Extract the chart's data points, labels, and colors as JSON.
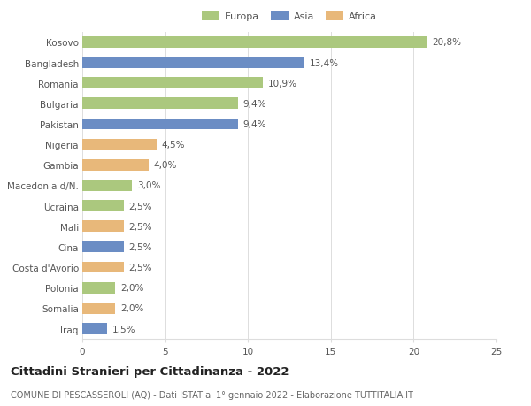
{
  "categories": [
    "Kosovo",
    "Bangladesh",
    "Romania",
    "Bulgaria",
    "Pakistan",
    "Nigeria",
    "Gambia",
    "Macedonia d/N.",
    "Ucraina",
    "Mali",
    "Cina",
    "Costa d'Avorio",
    "Polonia",
    "Somalia",
    "Iraq"
  ],
  "values": [
    20.8,
    13.4,
    10.9,
    9.4,
    9.4,
    4.5,
    4.0,
    3.0,
    2.5,
    2.5,
    2.5,
    2.5,
    2.0,
    2.0,
    1.5
  ],
  "labels": [
    "20,8%",
    "13,4%",
    "10,9%",
    "9,4%",
    "9,4%",
    "4,5%",
    "4,0%",
    "3,0%",
    "2,5%",
    "2,5%",
    "2,5%",
    "2,5%",
    "2,0%",
    "2,0%",
    "1,5%"
  ],
  "continent": [
    "Europa",
    "Asia",
    "Europa",
    "Europa",
    "Asia",
    "Africa",
    "Africa",
    "Europa",
    "Europa",
    "Africa",
    "Asia",
    "Africa",
    "Europa",
    "Africa",
    "Asia"
  ],
  "colors": {
    "Europa": "#abc87e",
    "Asia": "#6b8dc4",
    "Africa": "#e8b87a"
  },
  "xlim": [
    0,
    25
  ],
  "xticks": [
    0,
    5,
    10,
    15,
    20,
    25
  ],
  "title": "Cittadini Stranieri per Cittadinanza - 2022",
  "subtitle": "COMUNE DI PESCASSEROLI (AQ) - Dati ISTAT al 1° gennaio 2022 - Elaborazione TUTTITALIA.IT",
  "background_color": "#ffffff",
  "grid_color": "#dddddd",
  "bar_height": 0.55,
  "label_fontsize": 7.5,
  "tick_fontsize": 7.5,
  "title_fontsize": 9.5,
  "subtitle_fontsize": 7.0
}
